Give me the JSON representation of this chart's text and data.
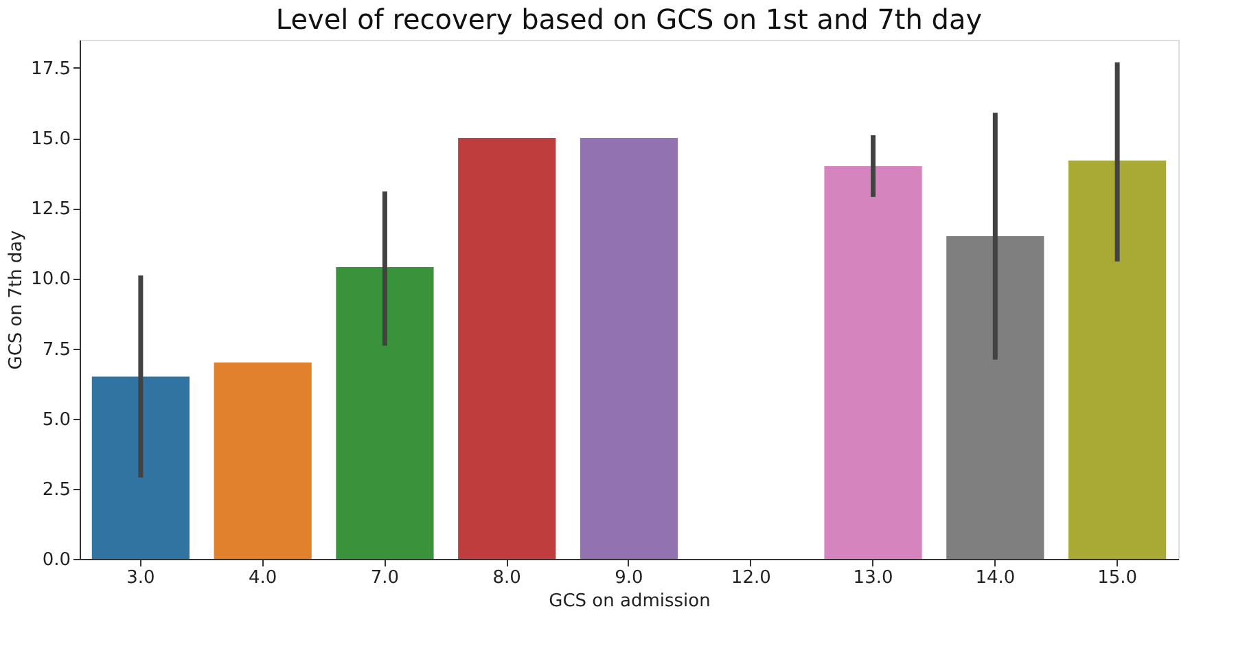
{
  "chart_data": {
    "type": "bar",
    "title": "Level of recovery based on GCS on 1st and 7th day",
    "xlabel": "GCS on admission",
    "ylabel": "GCS on 7th day",
    "categories": [
      "3.0",
      "4.0",
      "7.0",
      "8.0",
      "9.0",
      "12.0",
      "13.0",
      "14.0",
      "15.0"
    ],
    "values": [
      6.5,
      7.0,
      10.4,
      15.0,
      15.0,
      null,
      14.0,
      11.5,
      14.2
    ],
    "errors": [
      [
        2.9,
        10.1
      ],
      null,
      [
        7.6,
        13.1
      ],
      null,
      null,
      null,
      [
        12.9,
        15.1
      ],
      [
        7.1,
        15.9
      ],
      [
        10.6,
        17.7
      ]
    ],
    "colors": [
      "#3274a1",
      "#e1812c",
      "#3a923a",
      "#c03d3e",
      "#9372b2",
      "#845b53",
      "#d684bd",
      "#7f7f7f",
      "#a9aa35"
    ],
    "ylim": [
      0,
      18.5
    ],
    "yticks": [
      {
        "value": 0,
        "label": "0.0"
      },
      {
        "value": 2.5,
        "label": "2.5"
      },
      {
        "value": 5,
        "label": "5.0"
      },
      {
        "value": 7.5,
        "label": "7.5"
      },
      {
        "value": 10,
        "label": "10.0"
      },
      {
        "value": 12.5,
        "label": "12.5"
      },
      {
        "value": 15,
        "label": "15.0"
      },
      {
        "value": 17.5,
        "label": "17.5"
      }
    ],
    "grid": false,
    "legend": false
  }
}
